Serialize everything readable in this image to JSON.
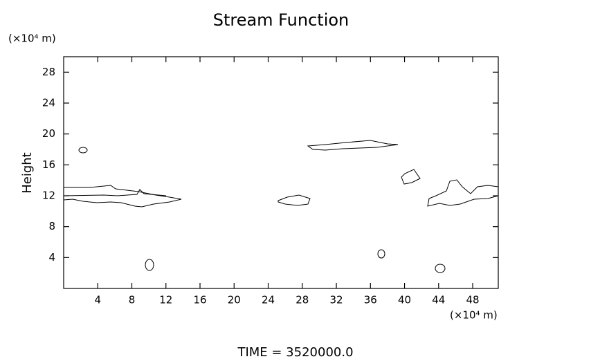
{
  "chart_data": {
    "type": "contour",
    "title": "Stream Function",
    "ylabel": "Height",
    "yunit": "(×10⁴ m)",
    "xunit": "(×10⁴ m)",
    "footer": "TIME = 3520000.0",
    "xlim": [
      0,
      51
    ],
    "xticks": [
      4,
      8,
      12,
      16,
      20,
      24,
      28,
      32,
      36,
      40,
      44,
      48
    ],
    "ylim": [
      0,
      30
    ],
    "yticks": [
      4,
      8,
      12,
      16,
      20,
      24,
      28
    ]
  }
}
